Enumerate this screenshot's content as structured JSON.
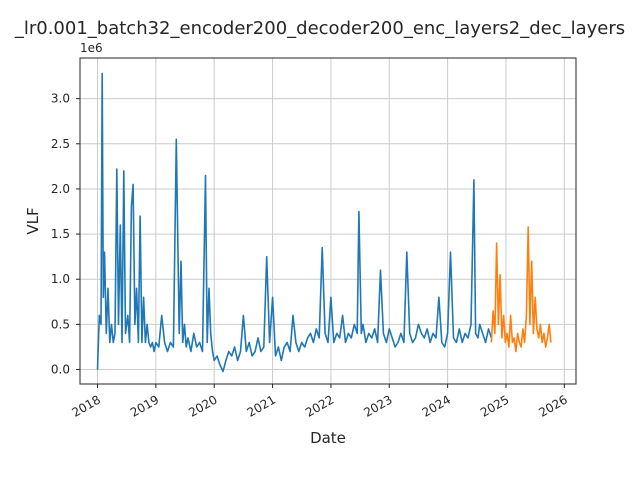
{
  "chart_data": {
    "type": "line",
    "title": "_lr0.001_batch32_encoder200_decoder200_enc_layers2_dec_layers",
    "xlabel": "Date",
    "ylabel": "VLF",
    "y_offset_label": "1e6",
    "x_tick_labels": [
      "2018",
      "2019",
      "2020",
      "2021",
      "2022",
      "2023",
      "2024",
      "2025",
      "2026"
    ],
    "y_tick_labels": [
      "0.0",
      "0.5",
      "1.0",
      "1.5",
      "2.0",
      "2.5",
      "3.0"
    ],
    "y_ticks": [
      0,
      0.5,
      1.0,
      1.5,
      2.0,
      2.5,
      3.0
    ],
    "xlim": [
      2017.7,
      2026.2
    ],
    "ylim": [
      -0.16,
      3.45
    ],
    "grid": true,
    "series": [
      {
        "color": "#1f77b4",
        "x": [
          2018.0,
          2018.03,
          2018.06,
          2018.08,
          2018.1,
          2018.12,
          2018.15,
          2018.18,
          2018.21,
          2018.24,
          2018.27,
          2018.3,
          2018.33,
          2018.36,
          2018.39,
          2018.42,
          2018.45,
          2018.48,
          2018.52,
          2018.55,
          2018.58,
          2018.61,
          2018.64,
          2018.67,
          2018.7,
          2018.73,
          2018.76,
          2018.79,
          2018.82,
          2018.85,
          2018.88,
          2018.91,
          2018.94,
          2018.97,
          2019.0,
          2019.05,
          2019.1,
          2019.15,
          2019.2,
          2019.25,
          2019.3,
          2019.35,
          2019.4,
          2019.43,
          2019.46,
          2019.49,
          2019.52,
          2019.55,
          2019.6,
          2019.65,
          2019.7,
          2019.75,
          2019.8,
          2019.85,
          2019.88,
          2019.91,
          2019.94,
          2019.97,
          2020.0,
          2020.05,
          2020.1,
          2020.15,
          2020.2,
          2020.25,
          2020.3,
          2020.35,
          2020.4,
          2020.45,
          2020.5,
          2020.55,
          2020.6,
          2020.65,
          2020.7,
          2020.75,
          2020.8,
          2020.85,
          2020.9,
          2020.95,
          2021.0,
          2021.05,
          2021.1,
          2021.15,
          2021.2,
          2021.25,
          2021.3,
          2021.35,
          2021.4,
          2021.45,
          2021.5,
          2021.55,
          2021.6,
          2021.65,
          2021.7,
          2021.75,
          2021.8,
          2021.85,
          2021.9,
          2021.95,
          2022.0,
          2022.05,
          2022.1,
          2022.15,
          2022.2,
          2022.25,
          2022.3,
          2022.35,
          2022.4,
          2022.45,
          2022.48,
          2022.52,
          2022.55,
          2022.6,
          2022.65,
          2022.7,
          2022.75,
          2022.8,
          2022.85,
          2022.9,
          2022.95,
          2023.0,
          2023.05,
          2023.1,
          2023.15,
          2023.2,
          2023.25,
          2023.3,
          2023.35,
          2023.4,
          2023.45,
          2023.5,
          2023.55,
          2023.6,
          2023.65,
          2023.7,
          2023.75,
          2023.8,
          2023.85,
          2023.9,
          2023.95,
          2024.0,
          2024.05,
          2024.1,
          2024.15,
          2024.2,
          2024.25,
          2024.3,
          2024.35,
          2024.4,
          2024.45,
          2024.48,
          2024.52,
          2024.55,
          2024.6,
          2024.65,
          2024.7,
          2024.75
        ],
        "values": [
          0.0,
          0.6,
          0.5,
          3.28,
          0.8,
          1.3,
          0.4,
          0.9,
          0.3,
          0.5,
          0.3,
          0.4,
          2.22,
          0.5,
          1.6,
          0.3,
          2.2,
          0.4,
          0.6,
          0.3,
          1.8,
          2.05,
          0.5,
          0.9,
          0.3,
          1.7,
          0.3,
          0.8,
          0.3,
          0.5,
          0.3,
          0.25,
          0.3,
          0.2,
          0.3,
          0.25,
          0.6,
          0.3,
          0.2,
          0.3,
          0.25,
          2.55,
          0.4,
          1.2,
          0.3,
          0.5,
          0.25,
          0.35,
          0.2,
          0.4,
          0.25,
          0.3,
          0.2,
          2.15,
          0.3,
          0.9,
          0.4,
          0.2,
          0.1,
          0.15,
          0.05,
          -0.02,
          0.1,
          0.2,
          0.15,
          0.25,
          0.1,
          0.2,
          0.6,
          0.2,
          0.3,
          0.15,
          0.2,
          0.35,
          0.2,
          0.25,
          1.25,
          0.3,
          0.8,
          0.15,
          0.25,
          0.1,
          0.25,
          0.3,
          0.2,
          0.6,
          0.3,
          0.2,
          0.3,
          0.25,
          0.35,
          0.4,
          0.3,
          0.45,
          0.35,
          1.35,
          0.4,
          0.3,
          0.8,
          0.3,
          0.4,
          0.35,
          0.6,
          0.3,
          0.4,
          0.35,
          0.5,
          0.4,
          1.75,
          0.4,
          0.5,
          0.3,
          0.4,
          0.35,
          0.45,
          0.3,
          1.1,
          0.4,
          0.3,
          0.45,
          0.35,
          0.25,
          0.3,
          0.4,
          0.3,
          1.3,
          0.4,
          0.3,
          0.35,
          0.5,
          0.4,
          0.35,
          0.45,
          0.3,
          0.4,
          0.35,
          0.8,
          0.3,
          0.25,
          0.4,
          1.3,
          0.35,
          0.3,
          0.45,
          0.3,
          0.4,
          0.35,
          0.5,
          2.1,
          0.4,
          0.35,
          0.5,
          0.4,
          0.3,
          0.45,
          0.35
        ]
      },
      {
        "color": "#ff7f0e",
        "x": [
          2024.75,
          2024.78,
          2024.81,
          2024.84,
          2024.87,
          2024.9,
          2024.93,
          2024.96,
          2024.99,
          2025.02,
          2025.05,
          2025.08,
          2025.11,
          2025.14,
          2025.17,
          2025.2,
          2025.23,
          2025.26,
          2025.29,
          2025.32,
          2025.35,
          2025.38,
          2025.41,
          2025.44,
          2025.47,
          2025.5,
          2025.53,
          2025.56,
          2025.59,
          2025.62,
          2025.65,
          2025.68,
          2025.71,
          2025.74,
          2025.77
        ],
        "values": [
          0.3,
          0.65,
          0.4,
          1.4,
          0.5,
          1.05,
          0.35,
          0.6,
          0.3,
          0.4,
          0.25,
          0.6,
          0.3,
          0.35,
          0.2,
          0.4,
          0.3,
          0.25,
          0.45,
          0.3,
          0.6,
          1.58,
          0.5,
          1.2,
          0.4,
          0.8,
          0.45,
          0.35,
          0.5,
          0.3,
          0.4,
          0.25,
          0.35,
          0.5,
          0.3
        ]
      }
    ]
  }
}
